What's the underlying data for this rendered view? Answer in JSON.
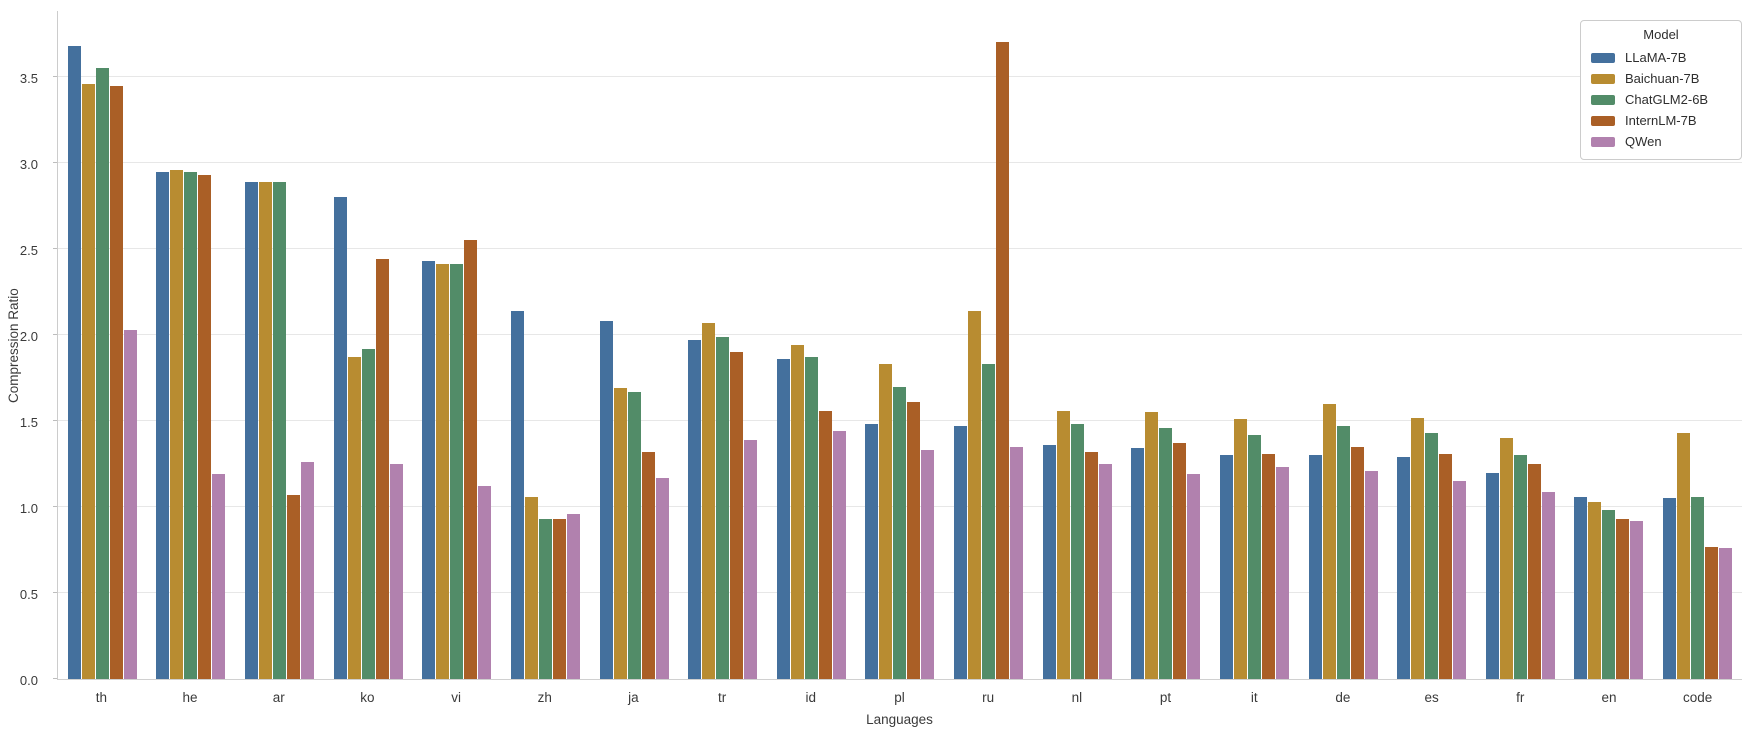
{
  "figure": {
    "background": "#ffffff",
    "grid_color": "#e7e7e7",
    "spine_color": "#cccccc",
    "text_color": "#3a3a3a"
  },
  "chart_data": {
    "type": "bar",
    "title": "",
    "xlabel": "Languages",
    "ylabel": "Compression Ratio",
    "ylim": [
      0,
      3.883
    ],
    "yticks": [
      0.0,
      0.5,
      1.0,
      1.5,
      2.0,
      2.5,
      3.0,
      3.5
    ],
    "ytick_labels": [
      "0.0",
      "0.5",
      "1.0",
      "1.5",
      "2.0",
      "2.5",
      "3.0",
      "3.5"
    ],
    "grid": true,
    "legend": {
      "title": "Model",
      "position": "upper right"
    },
    "categories": [
      "th",
      "he",
      "ar",
      "ko",
      "vi",
      "zh",
      "ja",
      "tr",
      "id",
      "pl",
      "ru",
      "nl",
      "pt",
      "it",
      "de",
      "es",
      "fr",
      "en",
      "code"
    ],
    "series": [
      {
        "name": "LLaMA-7B",
        "color": "#44709D",
        "values": [
          3.68,
          2.95,
          2.89,
          2.8,
          2.43,
          2.14,
          2.08,
          1.97,
          1.86,
          1.48,
          1.47,
          1.36,
          1.34,
          1.3,
          1.3,
          1.29,
          1.2,
          1.06,
          1.05
        ]
      },
      {
        "name": "Baichuan-7B",
        "color": "#B88C31",
        "values": [
          3.46,
          2.96,
          2.89,
          1.87,
          2.41,
          1.06,
          1.69,
          2.07,
          1.94,
          1.83,
          2.14,
          1.56,
          1.55,
          1.51,
          1.6,
          1.52,
          1.4,
          1.03,
          1.43
        ]
      },
      {
        "name": "ChatGLM2-6B",
        "color": "#528C68",
        "values": [
          3.55,
          2.95,
          2.89,
          1.92,
          2.41,
          0.93,
          1.67,
          1.99,
          1.87,
          1.7,
          1.83,
          1.48,
          1.46,
          1.42,
          1.47,
          1.43,
          1.3,
          0.98,
          1.06
        ]
      },
      {
        "name": "InternLM-7B",
        "color": "#AA5F26",
        "values": [
          3.45,
          2.93,
          1.07,
          2.44,
          2.55,
          0.93,
          1.32,
          1.9,
          1.56,
          1.61,
          3.7,
          1.32,
          1.37,
          1.31,
          1.35,
          1.31,
          1.25,
          0.93,
          0.77
        ]
      },
      {
        "name": "QWen",
        "color": "#B181AE",
        "values": [
          2.03,
          1.19,
          1.26,
          1.25,
          1.12,
          0.96,
          1.17,
          1.39,
          1.44,
          1.33,
          1.35,
          1.25,
          1.19,
          1.23,
          1.21,
          1.15,
          1.09,
          0.92,
          0.76
        ]
      }
    ]
  }
}
